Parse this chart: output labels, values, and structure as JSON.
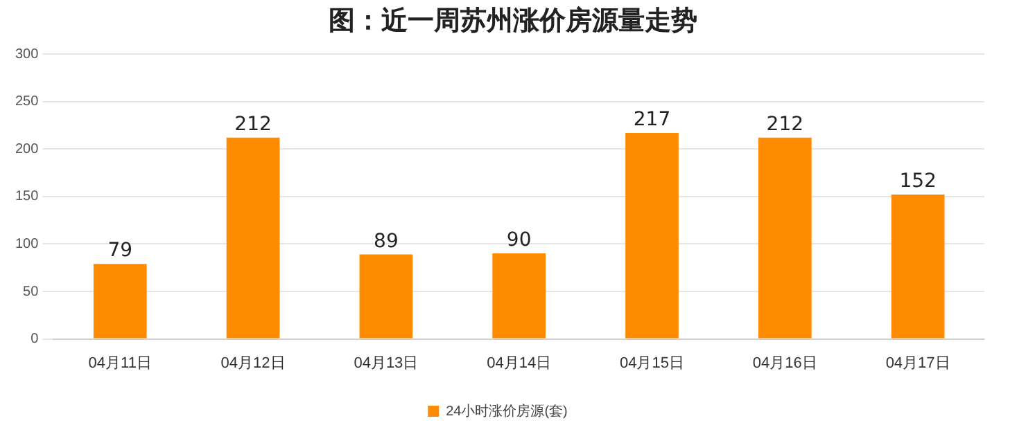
{
  "chart_data": {
    "type": "bar",
    "title": "图：近一周苏州涨价房源量走势",
    "categories": [
      "04月11日",
      "04月12日",
      "04月13日",
      "04月14日",
      "04月15日",
      "04月16日",
      "04月17日"
    ],
    "series": [
      {
        "name": "24小时涨价房源(套)",
        "color": "#ff8c00",
        "values": [
          79,
          212,
          89,
          90,
          217,
          212,
          152
        ]
      }
    ],
    "ylim": [
      0,
      300
    ],
    "yticks": [
      0,
      50,
      100,
      150,
      200,
      250,
      300
    ],
    "grid": "y",
    "legend": "bottom",
    "data_labels": true
  }
}
